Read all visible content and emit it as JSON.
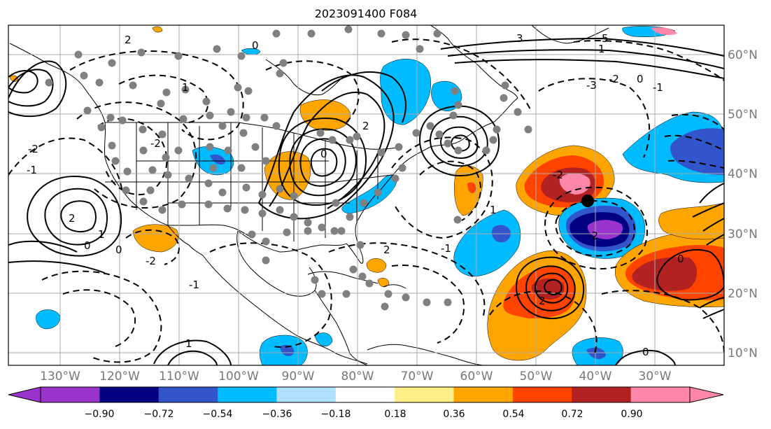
{
  "title": "2023091400 F084",
  "map": {
    "lon_labels": [
      "130°W",
      "120°W",
      "110°W",
      "100°W",
      "90°W",
      "80°W",
      "70°W",
      "60°W",
      "50°W",
      "40°W",
      "30°W"
    ],
    "lat_labels": [
      "10°N",
      "20°N",
      "30°N",
      "40°N",
      "50°N",
      "60°N"
    ],
    "contour_labels": [
      "0",
      "2",
      "3",
      "-3",
      "-2",
      "-1",
      "1",
      "5",
      "-2",
      "2",
      "0",
      "-2",
      "2",
      "-1",
      "0",
      "1",
      "-2",
      "2",
      "1",
      "0",
      "-1",
      "2",
      "0",
      "-2",
      "-1",
      "0",
      "1",
      "-2",
      "1",
      "0"
    ],
    "colors": {
      "land_line": "#000000",
      "grid": "#aaaaaa",
      "station_dot": "#808080",
      "storm_marker": "#000000"
    }
  },
  "colorbar": {
    "labels": [
      "−0.90",
      "−0.72",
      "−0.54",
      "−0.36",
      "−0.18",
      "0.18",
      "0.36",
      "0.54",
      "0.72",
      "0.90"
    ],
    "colors": [
      "#9933cc",
      "#000080",
      "#3355cc",
      "#00bbff",
      "#b0e0ff",
      "#ffffff",
      "#ffee88",
      "#ffa500",
      "#ff4400",
      "#b22222",
      "#ff88aa"
    ]
  }
}
